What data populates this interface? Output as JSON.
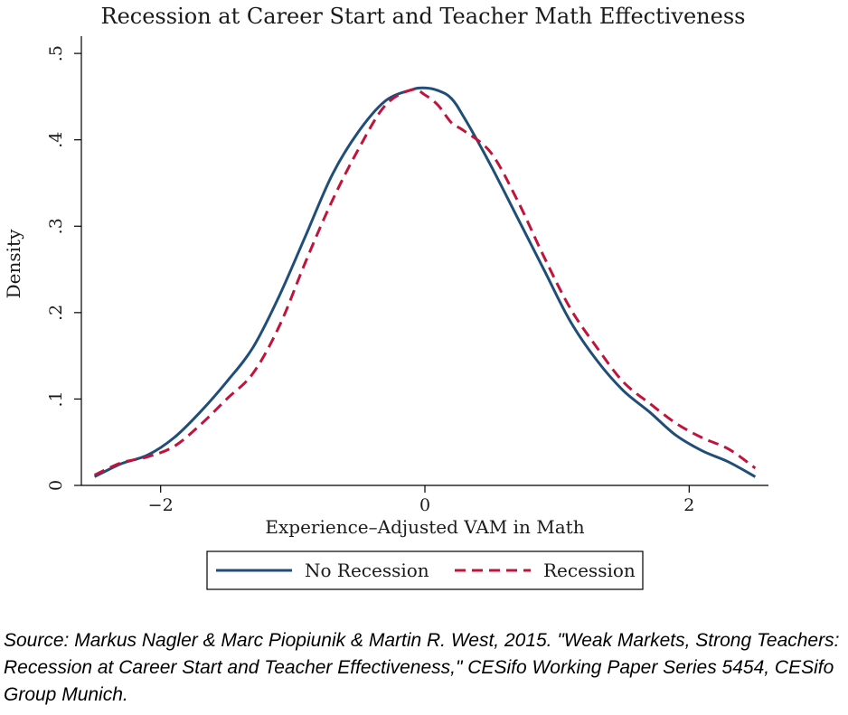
{
  "chart_data": {
    "type": "line",
    "title": "Recession at Career Start and Teacher Math Effectiveness",
    "xlabel": "Experience–Adjusted VAM in Math",
    "ylabel": "Density",
    "xlim": [
      -2.6,
      2.6
    ],
    "ylim": [
      0,
      0.52
    ],
    "x_ticks": [
      {
        "value": -2,
        "label": "−2"
      },
      {
        "value": 0,
        "label": "0"
      },
      {
        "value": 2,
        "label": "2"
      }
    ],
    "y_ticks": [
      {
        "value": 0,
        "label": "0"
      },
      {
        "value": 0.1,
        "label": ".1"
      },
      {
        "value": 0.2,
        "label": ".2"
      },
      {
        "value": 0.3,
        "label": ".3"
      },
      {
        "value": 0.4,
        "label": ".4"
      },
      {
        "value": 0.5,
        "label": ".5"
      }
    ],
    "grid": false,
    "legend_position": "bottom",
    "series": [
      {
        "name": "No Recession",
        "color": "#1f4e79",
        "style": "solid",
        "x": [
          -2.5,
          -2.3,
          -2.1,
          -1.9,
          -1.7,
          -1.5,
          -1.3,
          -1.1,
          -0.9,
          -0.7,
          -0.5,
          -0.3,
          -0.1,
          0.0,
          0.1,
          0.2,
          0.3,
          0.5,
          0.7,
          0.9,
          1.1,
          1.3,
          1.5,
          1.7,
          1.9,
          2.1,
          2.3,
          2.5
        ],
        "y": [
          0.01,
          0.025,
          0.035,
          0.055,
          0.085,
          0.12,
          0.16,
          0.22,
          0.29,
          0.36,
          0.41,
          0.445,
          0.458,
          0.46,
          0.457,
          0.448,
          0.425,
          0.37,
          0.31,
          0.25,
          0.19,
          0.145,
          0.11,
          0.085,
          0.058,
          0.04,
          0.027,
          0.01
        ]
      },
      {
        "name": "Recession",
        "color": "#c0143c",
        "style": "dashed",
        "x": [
          -2.5,
          -2.3,
          -2.1,
          -1.9,
          -1.7,
          -1.5,
          -1.3,
          -1.1,
          -0.9,
          -0.7,
          -0.5,
          -0.3,
          -0.1,
          0.0,
          0.1,
          0.2,
          0.3,
          0.5,
          0.7,
          0.9,
          1.1,
          1.3,
          1.5,
          1.7,
          1.9,
          2.1,
          2.3,
          2.5
        ],
        "y": [
          0.012,
          0.026,
          0.033,
          0.045,
          0.07,
          0.1,
          0.13,
          0.185,
          0.26,
          0.33,
          0.39,
          0.44,
          0.458,
          0.452,
          0.44,
          0.42,
          0.41,
          0.385,
          0.33,
          0.265,
          0.205,
          0.16,
          0.12,
          0.095,
          0.072,
          0.055,
          0.042,
          0.02
        ]
      }
    ]
  },
  "source_text": "Source: Markus Nagler & Marc Piopiunik & Martin R. West, 2015. \"Weak Markets, Strong Teachers: Recession at Career Start and Teacher Effectiveness,\" CESifo Working Paper Series 5454, CESifo Group Munich."
}
